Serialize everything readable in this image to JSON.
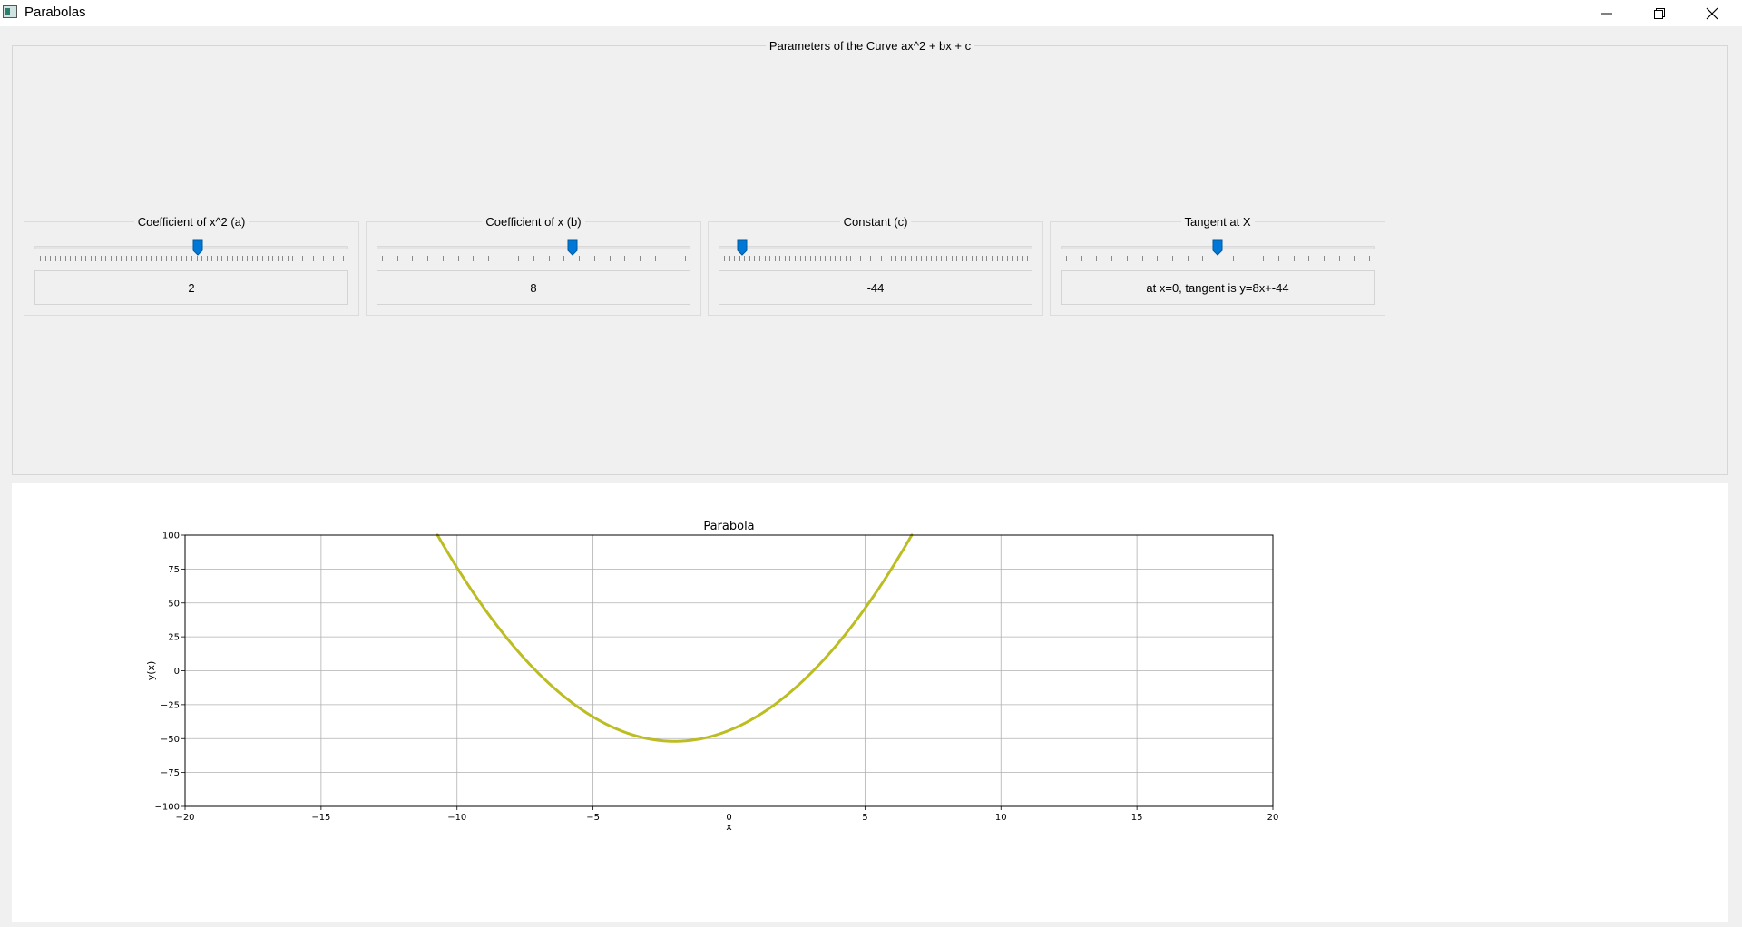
{
  "window": {
    "title": "Parabolas",
    "controls": {
      "minimize": "minimize-icon",
      "maximize": "restore-icon",
      "close": "close-icon"
    }
  },
  "parameters": {
    "group_title": "Parameters of the Curve ax^2 + bx + c",
    "accent_color": "#0078d7",
    "sliders": [
      {
        "id": "a",
        "title": "Coefficient of x^2 (a)",
        "value": "2",
        "position": 0.52
      },
      {
        "id": "b",
        "title": "Coefficient of x (b)",
        "value": "8",
        "position": 0.63
      },
      {
        "id": "c",
        "title": "Constant (c)",
        "value": "-44",
        "position": 0.06
      },
      {
        "id": "tangent",
        "title": "Tangent at X",
        "value": "at x=0, tangent is y=8x+-44",
        "position": 0.5
      }
    ]
  },
  "chart_data": {
    "type": "line",
    "title": "Parabola",
    "xlabel": "x",
    "ylabel": "y(x)",
    "xlim": [
      -20,
      20
    ],
    "ylim": [
      -100,
      100
    ],
    "xticks": [
      -20,
      -15,
      -10,
      -5,
      0,
      5,
      10,
      15,
      20
    ],
    "yticks": [
      -100,
      -75,
      -50,
      -25,
      0,
      25,
      50,
      75,
      100
    ],
    "grid": true,
    "series": [
      {
        "equation": "2x^2 + 8x - 44",
        "coefficients": {
          "a": 2,
          "b": 8,
          "c": -44
        },
        "color": "#bcbd22"
      }
    ]
  }
}
